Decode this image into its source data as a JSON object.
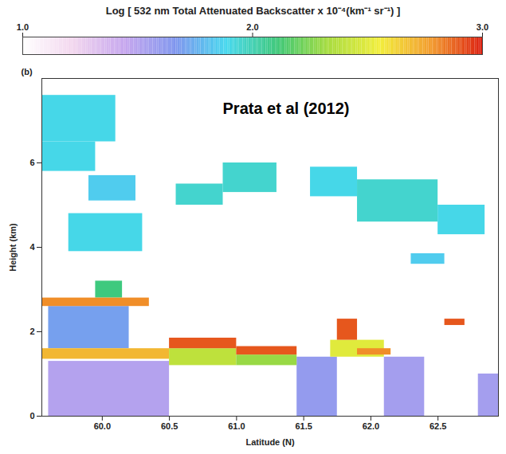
{
  "chart_data": {
    "type": "heatmap",
    "xlabel": "Latitude (N)",
    "ylabel": "Height (km)",
    "panel": "(b)",
    "annotation": "Prata et al (2012)",
    "xlim": [
      59.55,
      62.95
    ],
    "xticks": [
      {
        "value": 60,
        "label": "60.0"
      },
      60.5,
      {
        "value": 61,
        "label": "61.0"
      },
      61.5,
      {
        "value": 62,
        "label": "62.0"
      },
      62.5
    ],
    "ylim": [
      0,
      8
    ],
    "yticks": [
      0,
      2,
      4,
      6
    ],
    "colorbar": {
      "label": "Log [ 532 nm Total Attenuated Backscatter x 10⁻⁴(km⁻¹ sr⁻¹) ]",
      "range": [
        1,
        3
      ],
      "ticks": [
        {
          "value": 1,
          "label": "1.0"
        },
        {
          "value": 2,
          "label": "2.0"
        },
        {
          "value": 3,
          "label": "3.0"
        }
      ]
    },
    "cells": [
      {
        "x1": 59.55,
        "x2": 60.1,
        "y1": 6.5,
        "y2": 7.6,
        "value": 1.9
      },
      {
        "x1": 59.55,
        "x2": 59.95,
        "y1": 5.8,
        "y2": 6.5,
        "value": 1.9
      },
      {
        "x1": 59.9,
        "x2": 60.25,
        "y1": 5.1,
        "y2": 5.7,
        "value": 1.85
      },
      {
        "x1": 59.75,
        "x2": 60.3,
        "y1": 3.9,
        "y2": 4.8,
        "value": 1.9
      },
      {
        "x1": 60.55,
        "x2": 60.9,
        "y1": 5.0,
        "y2": 5.5,
        "value": 1.95
      },
      {
        "x1": 60.9,
        "x2": 61.3,
        "y1": 5.3,
        "y2": 6.0,
        "value": 1.95
      },
      {
        "x1": 61.55,
        "x2": 61.9,
        "y1": 5.2,
        "y2": 5.9,
        "value": 1.9
      },
      {
        "x1": 61.9,
        "x2": 62.5,
        "y1": 4.6,
        "y2": 5.6,
        "value": 1.95
      },
      {
        "x1": 62.5,
        "x2": 62.85,
        "y1": 4.3,
        "y2": 5.0,
        "value": 1.9
      },
      {
        "x1": 62.3,
        "x2": 62.55,
        "y1": 3.6,
        "y2": 3.85,
        "value": 1.85
      },
      {
        "x1": 59.6,
        "x2": 60.5,
        "y1": 0,
        "y2": 1.3,
        "value": 1.5
      },
      {
        "x1": 61.45,
        "x2": 61.75,
        "y1": 0,
        "y2": 1.4,
        "value": 1.6
      },
      {
        "x1": 62.1,
        "x2": 62.4,
        "y1": 0,
        "y2": 1.4,
        "value": 1.55
      },
      {
        "x1": 62.8,
        "x2": 62.95,
        "y1": 0,
        "y2": 1.0,
        "value": 1.55
      },
      {
        "x1": 59.6,
        "x2": 60.2,
        "y1": 1.6,
        "y2": 2.6,
        "value": 1.7
      },
      {
        "x1": 59.95,
        "x2": 60.15,
        "y1": 2.8,
        "y2": 3.2,
        "value": 2.1
      },
      {
        "x1": 59.55,
        "x2": 60.35,
        "y1": 2.6,
        "y2": 2.8,
        "value": 2.8
      },
      {
        "x1": 59.55,
        "x2": 60.5,
        "y1": 1.35,
        "y2": 1.6,
        "value": 2.7
      },
      {
        "x1": 60.5,
        "x2": 61.0,
        "y1": 1.2,
        "y2": 1.6,
        "value": 2.4
      },
      {
        "x1": 60.5,
        "x2": 61.0,
        "y1": 1.6,
        "y2": 1.85,
        "value": 2.9
      },
      {
        "x1": 61.0,
        "x2": 61.45,
        "y1": 1.2,
        "y2": 1.45,
        "value": 2.3
      },
      {
        "x1": 61.0,
        "x2": 61.45,
        "y1": 1.45,
        "y2": 1.65,
        "value": 2.9
      },
      {
        "x1": 61.7,
        "x2": 62.1,
        "y1": 1.4,
        "y2": 1.8,
        "value": 2.5
      },
      {
        "x1": 61.75,
        "x2": 61.9,
        "y1": 1.8,
        "y2": 2.3,
        "value": 2.9
      },
      {
        "x1": 61.9,
        "x2": 62.15,
        "y1": 1.45,
        "y2": 1.6,
        "value": 2.8
      },
      {
        "x1": 62.55,
        "x2": 62.7,
        "y1": 2.15,
        "y2": 2.3,
        "value": 2.9
      }
    ]
  }
}
